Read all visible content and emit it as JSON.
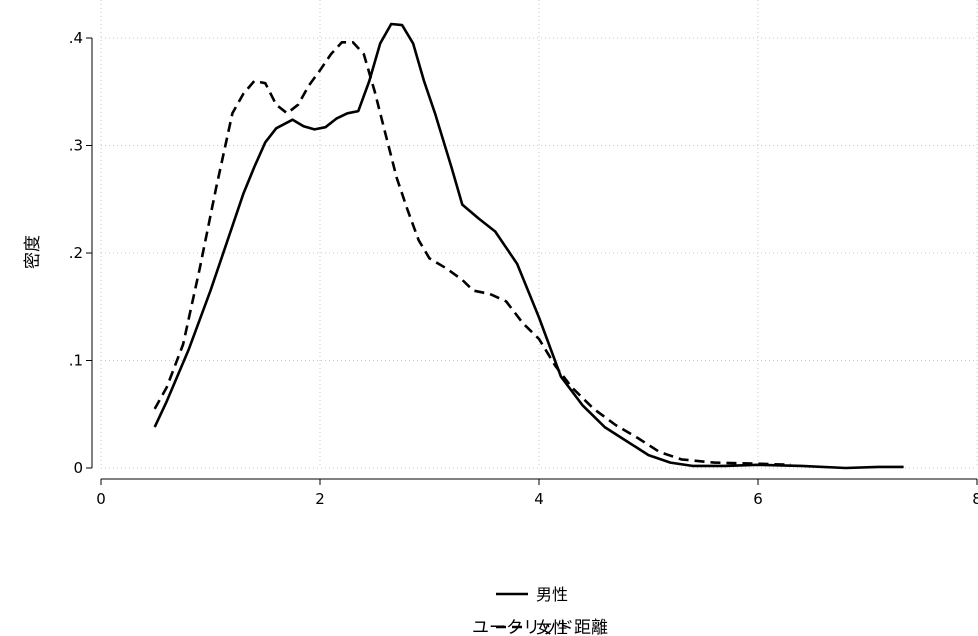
{
  "chart_data": {
    "type": "line",
    "xlabel": "ユークリッド距離",
    "ylabel": "密度",
    "xlim": [
      0,
      8
    ],
    "ylim": [
      0,
      0.4
    ],
    "xticks": [
      0,
      2,
      4,
      6,
      8
    ],
    "xtick_labels": [
      "0",
      "2",
      "4",
      "6",
      "8"
    ],
    "yticks": [
      0,
      0.1,
      0.2,
      0.3,
      0.4
    ],
    "ytick_labels": [
      "0",
      ".1",
      ".2",
      ".3",
      ".4"
    ],
    "grid": true,
    "legend_position": "bottom-center",
    "series": [
      {
        "name": "男性",
        "style": "solid",
        "color": "#000000",
        "points": [
          [
            0.49,
            0.038
          ],
          [
            0.6,
            0.062
          ],
          [
            0.8,
            0.11
          ],
          [
            1.0,
            0.165
          ],
          [
            1.2,
            0.225
          ],
          [
            1.3,
            0.255
          ],
          [
            1.4,
            0.28
          ],
          [
            1.5,
            0.303
          ],
          [
            1.6,
            0.316
          ],
          [
            1.75,
            0.324
          ],
          [
            1.85,
            0.318
          ],
          [
            1.95,
            0.315
          ],
          [
            2.05,
            0.317
          ],
          [
            2.15,
            0.325
          ],
          [
            2.25,
            0.33
          ],
          [
            2.35,
            0.332
          ],
          [
            2.45,
            0.36
          ],
          [
            2.55,
            0.395
          ],
          [
            2.65,
            0.413
          ],
          [
            2.75,
            0.412
          ],
          [
            2.85,
            0.395
          ],
          [
            2.95,
            0.36
          ],
          [
            3.05,
            0.33
          ],
          [
            3.2,
            0.28
          ],
          [
            3.3,
            0.245
          ],
          [
            3.45,
            0.232
          ],
          [
            3.6,
            0.22
          ],
          [
            3.8,
            0.19
          ],
          [
            4.0,
            0.14
          ],
          [
            4.2,
            0.085
          ],
          [
            4.4,
            0.058
          ],
          [
            4.6,
            0.038
          ],
          [
            4.8,
            0.025
          ],
          [
            5.0,
            0.012
          ],
          [
            5.2,
            0.005
          ],
          [
            5.4,
            0.002
          ],
          [
            5.7,
            0.002
          ],
          [
            6.0,
            0.003
          ],
          [
            6.4,
            0.002
          ],
          [
            6.8,
            0.0
          ],
          [
            7.1,
            0.001
          ],
          [
            7.33,
            0.001
          ]
        ]
      },
      {
        "name": "女性",
        "style": "dashed",
        "color": "#000000",
        "points": [
          [
            0.49,
            0.055
          ],
          [
            0.6,
            0.075
          ],
          [
            0.75,
            0.115
          ],
          [
            0.9,
            0.185
          ],
          [
            1.05,
            0.26
          ],
          [
            1.2,
            0.33
          ],
          [
            1.3,
            0.348
          ],
          [
            1.4,
            0.36
          ],
          [
            1.5,
            0.358
          ],
          [
            1.6,
            0.338
          ],
          [
            1.7,
            0.33
          ],
          [
            1.8,
            0.338
          ],
          [
            1.9,
            0.356
          ],
          [
            2.0,
            0.37
          ],
          [
            2.1,
            0.385
          ],
          [
            2.2,
            0.396
          ],
          [
            2.3,
            0.396
          ],
          [
            2.4,
            0.385
          ],
          [
            2.5,
            0.35
          ],
          [
            2.6,
            0.31
          ],
          [
            2.7,
            0.27
          ],
          [
            2.8,
            0.24
          ],
          [
            2.9,
            0.212
          ],
          [
            3.0,
            0.195
          ],
          [
            3.15,
            0.186
          ],
          [
            3.3,
            0.175
          ],
          [
            3.4,
            0.165
          ],
          [
            3.55,
            0.162
          ],
          [
            3.7,
            0.155
          ],
          [
            3.85,
            0.135
          ],
          [
            4.0,
            0.12
          ],
          [
            4.15,
            0.095
          ],
          [
            4.3,
            0.075
          ],
          [
            4.5,
            0.055
          ],
          [
            4.7,
            0.04
          ],
          [
            4.9,
            0.028
          ],
          [
            5.1,
            0.015
          ],
          [
            5.3,
            0.008
          ],
          [
            5.6,
            0.005
          ],
          [
            6.0,
            0.004
          ],
          [
            6.3,
            0.003
          ]
        ]
      }
    ]
  }
}
